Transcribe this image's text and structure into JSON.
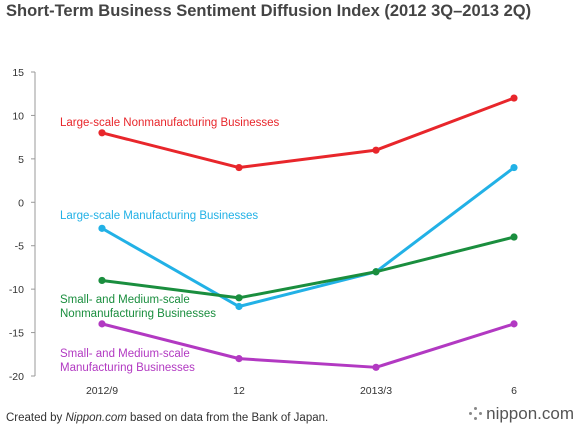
{
  "title": "Short-Term Business Sentiment Diffusion Index (2012 3Q–2013 2Q)",
  "footer": {
    "prefix": "Created by ",
    "site": "Nippon.com",
    "suffix": " based on data from the Bank of Japan."
  },
  "logo": "nippon.com",
  "chart_data": {
    "type": "line",
    "categories": [
      "2012/9",
      "12",
      "2013/3",
      "6"
    ],
    "ylim": [
      -20,
      15
    ],
    "yticks": [
      15,
      10,
      5,
      0,
      -5,
      -10,
      -15,
      -20
    ],
    "grid": false,
    "series": [
      {
        "name": "Large-scale Nonmanufacturing Businesses",
        "color": "#e8262b",
        "values": [
          8,
          4,
          6,
          12
        ]
      },
      {
        "name": "Large-scale Manufacturing Businesses",
        "color": "#22b1e6",
        "values": [
          -3,
          -12,
          -8,
          4
        ]
      },
      {
        "name": "Small- and Medium-scale Nonmanufacturing Businesses",
        "label_lines": [
          "Small- and Medium-scale",
          "Nonmanufacturing Businesses"
        ],
        "color": "#1a8e3e",
        "values": [
          -9,
          -11,
          -8,
          -4
        ]
      },
      {
        "name": "Small- and Medium-scale Manufacturing Businesses",
        "label_lines": [
          "Small- and Medium-scale",
          "Manufacturing Businesses"
        ],
        "color": "#b239c2",
        "values": [
          -14,
          -18,
          -19,
          -14
        ]
      }
    ]
  }
}
